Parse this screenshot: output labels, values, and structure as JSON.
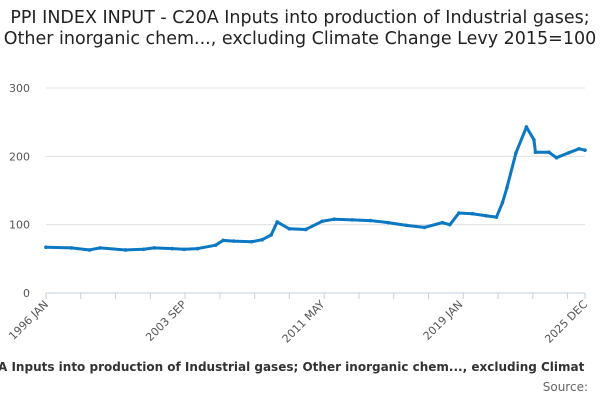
{
  "chart_data": {
    "type": "line",
    "title": "PPI INDEX INPUT - C20A Inputs into production of Industrial gases; Other inorganic chem..., excluding Climate Change Levy 2015=100",
    "xlabel": "",
    "ylabel": "",
    "x_tick_labels": [
      "1996 JAN",
      "2003 SEP",
      "2011 MAY",
      "2019 JAN",
      "2025 DEC"
    ],
    "x_range": [
      "1996-01",
      "2025-12"
    ],
    "y_ticks": [
      0,
      100,
      200,
      300
    ],
    "ylim": [
      0,
      300
    ],
    "grid": "horizontal",
    "line_color": "#0a78c2",
    "series": [
      {
        "x": [
          "1996-01",
          "1997-06",
          "1998-06",
          "1999-01",
          "2000-06",
          "2001-06",
          "2002-01",
          "2003-01",
          "2003-09",
          "2004-06",
          "2005-06",
          "2005-11",
          "2006-06",
          "2007-06",
          "2008-01",
          "2008-07",
          "2008-11",
          "2009-07",
          "2010-06",
          "2011-05",
          "2012-01",
          "2013-01",
          "2014-01",
          "2015-01",
          "2016-01",
          "2017-01",
          "2018-01",
          "2018-06",
          "2018-12",
          "2019-09",
          "2020-06",
          "2021-01",
          "2021-05",
          "2021-08",
          "2022-02",
          "2022-09",
          "2023-02",
          "2023-03",
          "2023-12",
          "2024-05",
          "2025-01",
          "2025-08",
          "2025-12"
        ],
        "values": [
          67,
          66,
          63,
          66,
          63,
          64,
          66,
          65,
          64,
          65,
          70,
          77,
          76,
          75,
          78,
          85,
          104,
          94,
          93,
          105,
          108,
          107,
          106,
          103,
          99,
          96,
          103,
          100,
          117,
          116,
          113,
          111,
          132,
          154,
          205,
          243,
          224,
          206,
          206,
          198,
          205,
          211,
          209
        ]
      }
    ]
  },
  "legend_text": "A Inputs into production of Industrial gases; Other inorganic chem..., excluding Climat",
  "source_label": "Source:"
}
